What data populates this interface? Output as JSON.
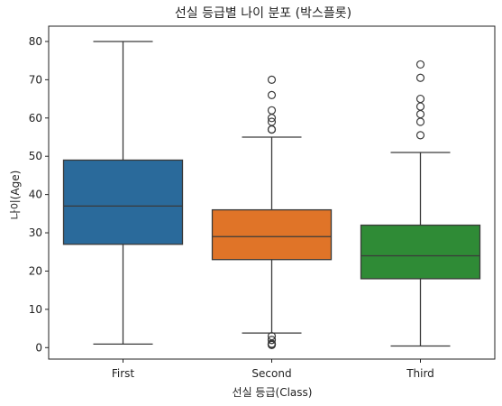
{
  "chart_data": {
    "type": "box",
    "title": "선실 등급별 나이 분포 (박스플롯)",
    "xlabel": "선실 등급(Class)",
    "ylabel": "나이(Age)",
    "categories": [
      "First",
      "Second",
      "Third"
    ],
    "ylim": [
      -3,
      84
    ],
    "yticks": [
      0,
      10,
      20,
      30,
      40,
      50,
      60,
      70,
      80
    ],
    "grid": false,
    "boxes": [
      {
        "category": "First",
        "whisker_low": 0.92,
        "q1": 27.0,
        "median": 37.0,
        "q3": 49.0,
        "whisker_high": 80.0,
        "outliers": [],
        "color": "#2a6a9b"
      },
      {
        "category": "Second",
        "whisker_low": 3.8,
        "q1": 23.0,
        "median": 29.0,
        "q3": 36.0,
        "whisker_high": 55.0,
        "outliers": [
          0.67,
          0.83,
          0.83,
          1.0,
          1.0,
          2.0,
          2.0,
          3.0,
          57.0,
          57.0,
          59.0,
          60.0,
          62.0,
          66.0,
          70.0
        ],
        "color": "#e07428"
      },
      {
        "category": "Third",
        "whisker_low": 0.42,
        "q1": 18.0,
        "median": 24.0,
        "q3": 32.0,
        "whisker_high": 51.0,
        "outliers": [
          55.5,
          59.0,
          61.0,
          63.0,
          65.0,
          70.5,
          74.0
        ],
        "color": "#2f8b36"
      }
    ]
  }
}
